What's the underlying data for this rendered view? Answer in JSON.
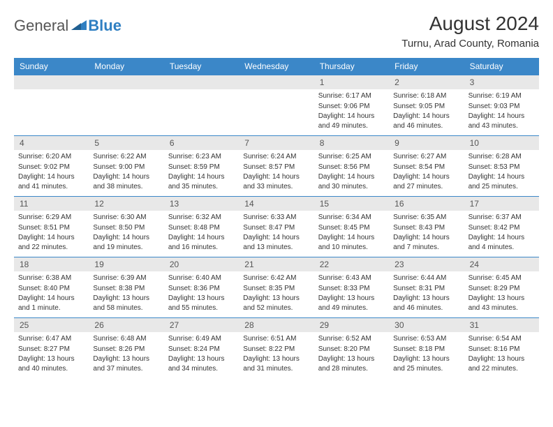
{
  "logo": {
    "general": "General",
    "blue": "Blue"
  },
  "title": "August 2024",
  "location": "Turnu, Arad County, Romania",
  "weekdays": [
    "Sunday",
    "Monday",
    "Tuesday",
    "Wednesday",
    "Thursday",
    "Friday",
    "Saturday"
  ],
  "colors": {
    "header_bar": "#3b87c8",
    "day_number_bg": "#e8e8e8",
    "week_separator": "#3b87c8",
    "logo_blue": "#2f7fc2",
    "logo_grey": "#555555",
    "text": "#333333",
    "background": "#ffffff"
  },
  "weeks": [
    [
      {
        "num": "",
        "sunrise": "",
        "sunset": "",
        "daylight": ""
      },
      {
        "num": "",
        "sunrise": "",
        "sunset": "",
        "daylight": ""
      },
      {
        "num": "",
        "sunrise": "",
        "sunset": "",
        "daylight": ""
      },
      {
        "num": "",
        "sunrise": "",
        "sunset": "",
        "daylight": ""
      },
      {
        "num": "1",
        "sunrise": "Sunrise: 6:17 AM",
        "sunset": "Sunset: 9:06 PM",
        "daylight": "Daylight: 14 hours and 49 minutes."
      },
      {
        "num": "2",
        "sunrise": "Sunrise: 6:18 AM",
        "sunset": "Sunset: 9:05 PM",
        "daylight": "Daylight: 14 hours and 46 minutes."
      },
      {
        "num": "3",
        "sunrise": "Sunrise: 6:19 AM",
        "sunset": "Sunset: 9:03 PM",
        "daylight": "Daylight: 14 hours and 43 minutes."
      }
    ],
    [
      {
        "num": "4",
        "sunrise": "Sunrise: 6:20 AM",
        "sunset": "Sunset: 9:02 PM",
        "daylight": "Daylight: 14 hours and 41 minutes."
      },
      {
        "num": "5",
        "sunrise": "Sunrise: 6:22 AM",
        "sunset": "Sunset: 9:00 PM",
        "daylight": "Daylight: 14 hours and 38 minutes."
      },
      {
        "num": "6",
        "sunrise": "Sunrise: 6:23 AM",
        "sunset": "Sunset: 8:59 PM",
        "daylight": "Daylight: 14 hours and 35 minutes."
      },
      {
        "num": "7",
        "sunrise": "Sunrise: 6:24 AM",
        "sunset": "Sunset: 8:57 PM",
        "daylight": "Daylight: 14 hours and 33 minutes."
      },
      {
        "num": "8",
        "sunrise": "Sunrise: 6:25 AM",
        "sunset": "Sunset: 8:56 PM",
        "daylight": "Daylight: 14 hours and 30 minutes."
      },
      {
        "num": "9",
        "sunrise": "Sunrise: 6:27 AM",
        "sunset": "Sunset: 8:54 PM",
        "daylight": "Daylight: 14 hours and 27 minutes."
      },
      {
        "num": "10",
        "sunrise": "Sunrise: 6:28 AM",
        "sunset": "Sunset: 8:53 PM",
        "daylight": "Daylight: 14 hours and 25 minutes."
      }
    ],
    [
      {
        "num": "11",
        "sunrise": "Sunrise: 6:29 AM",
        "sunset": "Sunset: 8:51 PM",
        "daylight": "Daylight: 14 hours and 22 minutes."
      },
      {
        "num": "12",
        "sunrise": "Sunrise: 6:30 AM",
        "sunset": "Sunset: 8:50 PM",
        "daylight": "Daylight: 14 hours and 19 minutes."
      },
      {
        "num": "13",
        "sunrise": "Sunrise: 6:32 AM",
        "sunset": "Sunset: 8:48 PM",
        "daylight": "Daylight: 14 hours and 16 minutes."
      },
      {
        "num": "14",
        "sunrise": "Sunrise: 6:33 AM",
        "sunset": "Sunset: 8:47 PM",
        "daylight": "Daylight: 14 hours and 13 minutes."
      },
      {
        "num": "15",
        "sunrise": "Sunrise: 6:34 AM",
        "sunset": "Sunset: 8:45 PM",
        "daylight": "Daylight: 14 hours and 10 minutes."
      },
      {
        "num": "16",
        "sunrise": "Sunrise: 6:35 AM",
        "sunset": "Sunset: 8:43 PM",
        "daylight": "Daylight: 14 hours and 7 minutes."
      },
      {
        "num": "17",
        "sunrise": "Sunrise: 6:37 AM",
        "sunset": "Sunset: 8:42 PM",
        "daylight": "Daylight: 14 hours and 4 minutes."
      }
    ],
    [
      {
        "num": "18",
        "sunrise": "Sunrise: 6:38 AM",
        "sunset": "Sunset: 8:40 PM",
        "daylight": "Daylight: 14 hours and 1 minute."
      },
      {
        "num": "19",
        "sunrise": "Sunrise: 6:39 AM",
        "sunset": "Sunset: 8:38 PM",
        "daylight": "Daylight: 13 hours and 58 minutes."
      },
      {
        "num": "20",
        "sunrise": "Sunrise: 6:40 AM",
        "sunset": "Sunset: 8:36 PM",
        "daylight": "Daylight: 13 hours and 55 minutes."
      },
      {
        "num": "21",
        "sunrise": "Sunrise: 6:42 AM",
        "sunset": "Sunset: 8:35 PM",
        "daylight": "Daylight: 13 hours and 52 minutes."
      },
      {
        "num": "22",
        "sunrise": "Sunrise: 6:43 AM",
        "sunset": "Sunset: 8:33 PM",
        "daylight": "Daylight: 13 hours and 49 minutes."
      },
      {
        "num": "23",
        "sunrise": "Sunrise: 6:44 AM",
        "sunset": "Sunset: 8:31 PM",
        "daylight": "Daylight: 13 hours and 46 minutes."
      },
      {
        "num": "24",
        "sunrise": "Sunrise: 6:45 AM",
        "sunset": "Sunset: 8:29 PM",
        "daylight": "Daylight: 13 hours and 43 minutes."
      }
    ],
    [
      {
        "num": "25",
        "sunrise": "Sunrise: 6:47 AM",
        "sunset": "Sunset: 8:27 PM",
        "daylight": "Daylight: 13 hours and 40 minutes."
      },
      {
        "num": "26",
        "sunrise": "Sunrise: 6:48 AM",
        "sunset": "Sunset: 8:26 PM",
        "daylight": "Daylight: 13 hours and 37 minutes."
      },
      {
        "num": "27",
        "sunrise": "Sunrise: 6:49 AM",
        "sunset": "Sunset: 8:24 PM",
        "daylight": "Daylight: 13 hours and 34 minutes."
      },
      {
        "num": "28",
        "sunrise": "Sunrise: 6:51 AM",
        "sunset": "Sunset: 8:22 PM",
        "daylight": "Daylight: 13 hours and 31 minutes."
      },
      {
        "num": "29",
        "sunrise": "Sunrise: 6:52 AM",
        "sunset": "Sunset: 8:20 PM",
        "daylight": "Daylight: 13 hours and 28 minutes."
      },
      {
        "num": "30",
        "sunrise": "Sunrise: 6:53 AM",
        "sunset": "Sunset: 8:18 PM",
        "daylight": "Daylight: 13 hours and 25 minutes."
      },
      {
        "num": "31",
        "sunrise": "Sunrise: 6:54 AM",
        "sunset": "Sunset: 8:16 PM",
        "daylight": "Daylight: 13 hours and 22 minutes."
      }
    ]
  ]
}
